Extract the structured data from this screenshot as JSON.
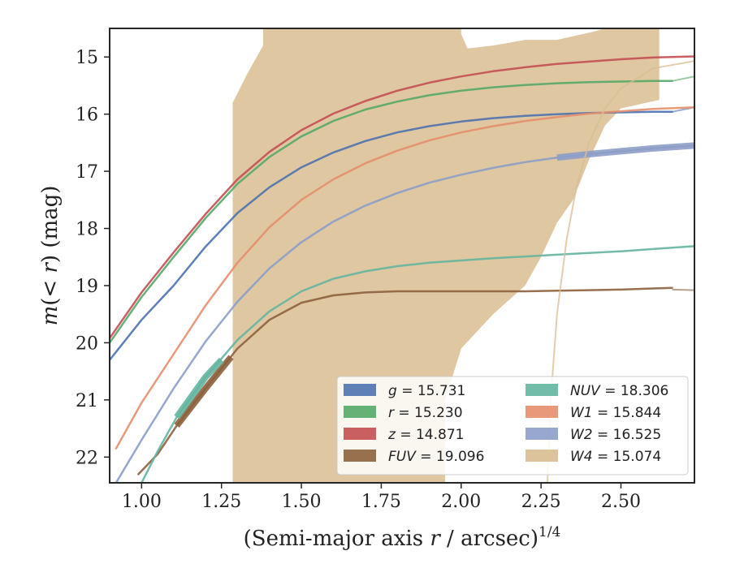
{
  "chart_data": {
    "type": "line",
    "xlabel": "(Semi-major axis r / arcsec)^1/4",
    "xlabel_base": "(Semi-major axis ",
    "xlabel_var": "r",
    "xlabel_unit": " / arcsec)",
    "xlabel_exp": "1/4",
    "ylabel": "m(< r) (mag)",
    "ylabel_var": "m",
    "ylabel_mid": "(< ",
    "ylabel_var2": "r",
    "ylabel_end": ") (mag)",
    "xlim": [
      0.9,
      2.73
    ],
    "ylim": [
      22.45,
      14.5
    ],
    "y_inverted": true,
    "grid": false,
    "legend_placement": "lower-right",
    "x_ticks": [
      "1.00",
      "1.25",
      "1.50",
      "1.75",
      "2.00",
      "2.25",
      "2.50"
    ],
    "x_tick_values": [
      1.0,
      1.25,
      1.5,
      1.75,
      2.0,
      2.25,
      2.5
    ],
    "y_ticks": [
      "15",
      "16",
      "17",
      "18",
      "19",
      "20",
      "21",
      "22"
    ],
    "y_tick_values": [
      15,
      16,
      17,
      18,
      19,
      20,
      21,
      22
    ],
    "series": [
      {
        "name": "g",
        "band": "g",
        "legend": "= 15.731",
        "color": "#4c72b0",
        "x": [
          0.9,
          1.0,
          1.1,
          1.2,
          1.3,
          1.4,
          1.5,
          1.6,
          1.7,
          1.8,
          1.9,
          2.0,
          2.1,
          2.2,
          2.3,
          2.4,
          2.5,
          2.6,
          2.66
        ],
        "y": [
          20.3,
          19.6,
          19.0,
          18.32,
          17.73,
          17.28,
          16.93,
          16.67,
          16.47,
          16.32,
          16.21,
          16.13,
          16.07,
          16.03,
          16.0,
          15.98,
          15.97,
          15.96,
          15.96
        ],
        "faint_x": [
          2.66,
          2.73
        ],
        "faint_y": [
          15.96,
          15.88
        ]
      },
      {
        "name": "r",
        "band": "r",
        "legend": "= 15.230",
        "color": "#55a868",
        "x": [
          0.9,
          1.0,
          1.1,
          1.2,
          1.3,
          1.4,
          1.5,
          1.6,
          1.7,
          1.8,
          1.9,
          2.0,
          2.1,
          2.2,
          2.3,
          2.4,
          2.5,
          2.6,
          2.66
        ],
        "y": [
          20.0,
          19.2,
          18.5,
          17.82,
          17.22,
          16.75,
          16.39,
          16.12,
          15.92,
          15.78,
          15.67,
          15.59,
          15.53,
          15.49,
          15.46,
          15.44,
          15.43,
          15.42,
          15.42
        ],
        "faint_x": [
          2.66,
          2.73
        ],
        "faint_y": [
          15.42,
          15.34
        ]
      },
      {
        "name": "z",
        "band": "z",
        "legend": "= 14.871",
        "color": "#c44e52",
        "x": [
          0.9,
          1.0,
          1.1,
          1.2,
          1.3,
          1.4,
          1.5,
          1.6,
          1.7,
          1.8,
          1.9,
          2.0,
          2.1,
          2.2,
          2.3,
          2.4,
          2.5,
          2.6,
          2.73
        ],
        "y": [
          19.92,
          19.12,
          18.42,
          17.75,
          17.14,
          16.66,
          16.28,
          15.99,
          15.77,
          15.59,
          15.45,
          15.34,
          15.25,
          15.18,
          15.12,
          15.08,
          15.04,
          15.01,
          14.99
        ]
      },
      {
        "name": "FUV",
        "band": "FUV",
        "legend": "= 19.096",
        "color": "#8c613c",
        "x": [
          0.99,
          1.05,
          1.11,
          1.2,
          1.3,
          1.4,
          1.5,
          1.6,
          1.7,
          1.8,
          1.9,
          2.0,
          2.1,
          2.2,
          2.3,
          2.4,
          2.5,
          2.6,
          2.66
        ],
        "y": [
          22.3,
          21.95,
          21.45,
          20.8,
          20.1,
          19.6,
          19.3,
          19.17,
          19.12,
          19.1,
          19.1,
          19.1,
          19.1,
          19.1,
          19.09,
          19.08,
          19.07,
          19.05,
          19.04
        ],
        "thick_x": [
          1.11,
          1.2,
          1.28
        ],
        "thick_y": [
          21.45,
          20.8,
          20.25
        ],
        "faint_x": [
          2.66,
          2.73
        ],
        "faint_y": [
          19.07,
          19.08
        ]
      },
      {
        "name": "NUV",
        "band": "NUV",
        "legend": "= 18.306",
        "color": "#64b5a0",
        "x": [
          1.0,
          1.05,
          1.11,
          1.2,
          1.3,
          1.4,
          1.5,
          1.6,
          1.7,
          1.8,
          1.9,
          2.0,
          2.1,
          2.2,
          2.3,
          2.4,
          2.5,
          2.6,
          2.73
        ],
        "y": [
          22.45,
          21.9,
          21.3,
          20.6,
          19.95,
          19.45,
          19.1,
          18.88,
          18.75,
          18.66,
          18.6,
          18.56,
          18.52,
          18.49,
          18.46,
          18.43,
          18.4,
          18.36,
          18.31
        ],
        "thick_x": [
          1.11,
          1.2,
          1.25
        ],
        "thick_y": [
          21.3,
          20.6,
          20.3
        ]
      },
      {
        "name": "W1",
        "band": "W1",
        "legend": "= 15.844",
        "color": "#e58e6b",
        "x": [
          0.92,
          1.0,
          1.1,
          1.2,
          1.3,
          1.4,
          1.5,
          1.6,
          1.7,
          1.8,
          1.9,
          2.0,
          2.1,
          2.2,
          2.3,
          2.4,
          2.5,
          2.6,
          2.73
        ],
        "y": [
          21.85,
          21.05,
          20.2,
          19.35,
          18.6,
          17.98,
          17.5,
          17.14,
          16.86,
          16.64,
          16.46,
          16.32,
          16.21,
          16.12,
          16.05,
          15.99,
          15.95,
          15.91,
          15.88
        ]
      },
      {
        "name": "W2",
        "band": "W2",
        "legend": "= 16.525",
        "color": "#8c9dc8",
        "x": [
          0.92,
          1.0,
          1.1,
          1.2,
          1.3,
          1.4,
          1.5,
          1.6,
          1.7,
          1.8,
          1.9,
          2.0,
          2.1,
          2.2,
          2.3,
          2.4,
          2.5,
          2.6,
          2.73
        ],
        "y": [
          22.45,
          21.7,
          20.8,
          19.98,
          19.28,
          18.7,
          18.24,
          17.88,
          17.6,
          17.38,
          17.2,
          17.06,
          16.94,
          16.84,
          16.76,
          16.7,
          16.65,
          16.6,
          16.55
        ],
        "thick_x": [
          2.3,
          2.4,
          2.5,
          2.6,
          2.73
        ],
        "thick_y": [
          16.76,
          16.7,
          16.65,
          16.6,
          16.55
        ]
      },
      {
        "name": "W4",
        "band": "W4",
        "legend": "= 15.074",
        "color": "#d8bd91",
        "x": [
          2.27,
          2.28,
          2.3,
          2.33,
          2.36,
          2.4,
          2.45,
          2.5,
          2.6,
          2.73
        ],
        "y": [
          22.45,
          21.0,
          19.5,
          18.2,
          17.3,
          16.5,
          15.9,
          15.55,
          15.2,
          15.07
        ],
        "band_upper_x": [
          1.285,
          1.285,
          1.33,
          1.38,
          1.38,
          2.0,
          2.0,
          2.02,
          2.1,
          2.2,
          2.3,
          2.42,
          2.45,
          2.62,
          2.62
        ],
        "band_upper_y": [
          22.45,
          15.8,
          15.3,
          14.8,
          14.5,
          14.5,
          14.6,
          14.85,
          14.8,
          14.7,
          14.7,
          14.55,
          14.5,
          14.5,
          15.75
        ],
        "band_lower_x": [
          2.62,
          2.5,
          2.45,
          2.4,
          2.35,
          2.3,
          2.25,
          2.2,
          2.1,
          2.0,
          1.95,
          1.95
        ],
        "band_lower_y": [
          15.75,
          15.9,
          16.2,
          16.8,
          17.5,
          17.9,
          18.5,
          19.0,
          19.5,
          20.1,
          21.0,
          22.45
        ]
      }
    ]
  }
}
